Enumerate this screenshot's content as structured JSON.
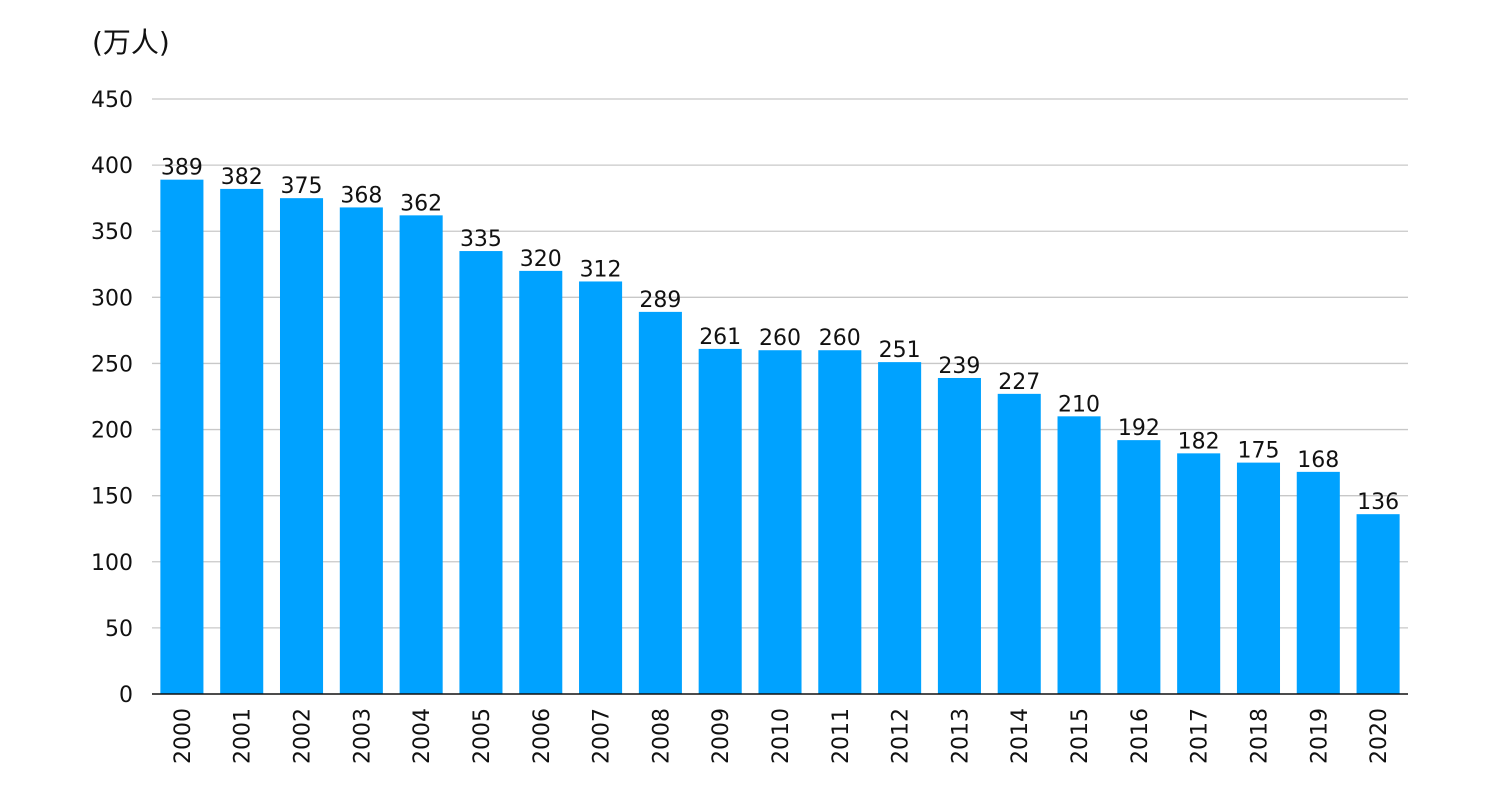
{
  "chart_data": {
    "type": "bar",
    "unit_label": "(万人)",
    "categories": [
      "2000",
      "2001",
      "2002",
      "2003",
      "2004",
      "2005",
      "2006",
      "2007",
      "2008",
      "2009",
      "2010",
      "2011",
      "2012",
      "2013",
      "2014",
      "2015",
      "2016",
      "2017",
      "2018",
      "2019",
      "2020"
    ],
    "values": [
      389,
      382,
      375,
      368,
      362,
      335,
      320,
      312,
      289,
      261,
      260,
      260,
      251,
      239,
      227,
      210,
      192,
      182,
      175,
      168,
      136
    ],
    "ylim": [
      0,
      450
    ],
    "yticks": [
      0,
      50,
      100,
      150,
      200,
      250,
      300,
      350,
      400,
      450
    ],
    "grid": true,
    "bar_color": "#00A2FF",
    "grid_color": "#c8c8c8",
    "axis_color": "#111111",
    "data_labels": true
  }
}
